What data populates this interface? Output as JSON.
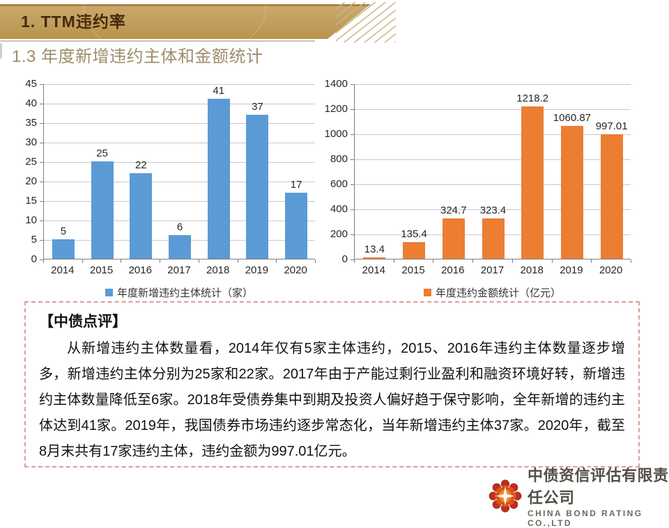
{
  "slide": {
    "banner_title": "1. TTM违约率",
    "section_title": "1.3 年度新增违约主体和金额统计"
  },
  "chart_data": [
    {
      "type": "bar",
      "categories": [
        "2014",
        "2015",
        "2016",
        "2017",
        "2018",
        "2019",
        "2020"
      ],
      "values": [
        5,
        25,
        22,
        6,
        41,
        37,
        17
      ],
      "value_labels": [
        "5",
        "25",
        "22",
        "6",
        "41",
        "37",
        "17"
      ],
      "ylim": [
        0,
        45
      ],
      "ytick_step": 5,
      "grid": true,
      "bar_color": "#5B9BD5",
      "legend": "年度新增违约主体统计（家）",
      "legend_position": "bottom"
    },
    {
      "type": "bar",
      "categories": [
        "2014",
        "2015",
        "2016",
        "2017",
        "2018",
        "2019",
        "2020"
      ],
      "values": [
        13.4,
        135.4,
        324.7,
        323.4,
        1218.2,
        1060.87,
        997.01
      ],
      "value_labels": [
        "13.4",
        "135.4",
        "324.7",
        "323.4",
        "1218.2",
        "1060.87",
        "997.01"
      ],
      "ylim": [
        0,
        1400
      ],
      "ytick_step": 200,
      "grid": true,
      "bar_color": "#ED7D31",
      "legend": "年度违约金额统计（亿元）",
      "legend_position": "bottom"
    }
  ],
  "comment": {
    "title": "【中债点评】",
    "body": "从新增违约主体数量看，2014年仅有5家主体违约，2015、2016年违约主体数量逐步增多，新增违约主体分别为25家和22家。2017年由于产能过剩行业盈利和融资环境好转，新增违约主体数量降低至6家。2018年受债券集中到期及投资人偏好趋于保守影响，全年新增的违约主体达到41家。2019年，我国债券市场违约逐步常态化，当年新增违约主体37家。2020年，截至8月末共有17家违约主体，违约金额为997.01亿元。"
  },
  "footer": {
    "company_cn": "中债资信评估有限责任公司",
    "company_en": "CHINA BOND RATING CO.,LTD",
    "logo_icon": "sunburst-flower-logo"
  },
  "colors": {
    "banner_gold": "#C2A05E",
    "banner_text": "#46290B",
    "section_title": "#9D8D6B",
    "bar_blue": "#5B9BD5",
    "bar_orange": "#ED7D31",
    "comment_border": "#DB9E97",
    "logo_red": "#C63D1F"
  }
}
